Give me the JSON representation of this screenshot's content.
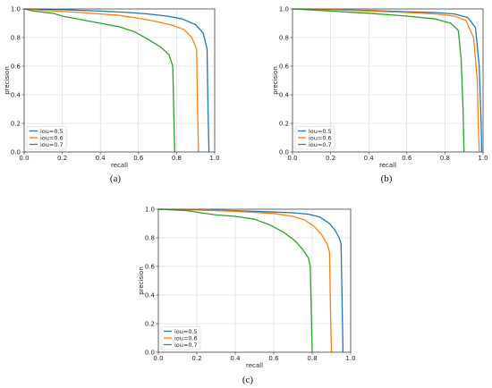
{
  "chart_data": [
    {
      "type": "line",
      "panel": "(a)",
      "xlabel": "recall",
      "ylabel": "precision",
      "xlim": [
        0.0,
        1.0
      ],
      "ylim": [
        0.0,
        1.0
      ],
      "xticks": [
        "0.0",
        "0.2",
        "0.4",
        "0.6",
        "0.8",
        "1.0"
      ],
      "yticks": [
        "0.0",
        "0.2",
        "0.4",
        "0.6",
        "0.8",
        "1.0"
      ],
      "grid": true,
      "legend": "lower-left",
      "series": [
        {
          "name": "iou=0.5",
          "color": "#1f77b4",
          "x": [
            0.0,
            0.2,
            0.4,
            0.55,
            0.65,
            0.75,
            0.83,
            0.9,
            0.94,
            0.96,
            0.965,
            0.97
          ],
          "y": [
            1.0,
            0.995,
            0.985,
            0.975,
            0.965,
            0.95,
            0.93,
            0.89,
            0.83,
            0.72,
            0.3,
            0.0
          ]
        },
        {
          "name": "iou=0.6",
          "color": "#ff7f0e",
          "x": [
            0.0,
            0.1,
            0.3,
            0.5,
            0.6,
            0.7,
            0.78,
            0.84,
            0.88,
            0.905,
            0.91,
            0.915
          ],
          "y": [
            1.0,
            0.99,
            0.975,
            0.955,
            0.935,
            0.91,
            0.885,
            0.855,
            0.8,
            0.72,
            0.3,
            0.0
          ]
        },
        {
          "name": "iou=0.7",
          "color": "#2ca02c",
          "x": [
            0.0,
            0.05,
            0.15,
            0.2,
            0.3,
            0.4,
            0.5,
            0.58,
            0.66,
            0.72,
            0.76,
            0.78,
            0.785,
            0.79
          ],
          "y": [
            1.0,
            0.985,
            0.97,
            0.95,
            0.925,
            0.9,
            0.875,
            0.84,
            0.78,
            0.73,
            0.68,
            0.6,
            0.3,
            0.0
          ]
        }
      ]
    },
    {
      "type": "line",
      "panel": "(b)",
      "xlabel": "recall",
      "ylabel": "precision",
      "xlim": [
        0.0,
        1.0
      ],
      "ylim": [
        0.0,
        1.0
      ],
      "xticks": [
        "0.0",
        "0.2",
        "0.4",
        "0.6",
        "0.8",
        "1.0"
      ],
      "yticks": [
        "0.0",
        "0.2",
        "0.4",
        "0.6",
        "0.8",
        "1.0"
      ],
      "grid": true,
      "legend": "lower-left",
      "series": [
        {
          "name": "iou=0.5",
          "color": "#1f77b4",
          "x": [
            0.0,
            0.2,
            0.4,
            0.6,
            0.75,
            0.85,
            0.92,
            0.96,
            0.98,
            0.99,
            0.993
          ],
          "y": [
            1.0,
            0.995,
            0.99,
            0.98,
            0.975,
            0.965,
            0.94,
            0.87,
            0.6,
            0.2,
            0.0
          ]
        },
        {
          "name": "iou=0.6",
          "color": "#ff7f0e",
          "x": [
            0.0,
            0.2,
            0.4,
            0.6,
            0.75,
            0.85,
            0.91,
            0.95,
            0.97,
            0.975,
            0.98
          ],
          "y": [
            1.0,
            0.995,
            0.985,
            0.975,
            0.965,
            0.95,
            0.92,
            0.8,
            0.5,
            0.2,
            0.0
          ]
        },
        {
          "name": "iou=0.7",
          "color": "#2ca02c",
          "x": [
            0.0,
            0.2,
            0.4,
            0.6,
            0.75,
            0.83,
            0.87,
            0.885,
            0.895,
            0.9
          ],
          "y": [
            1.0,
            0.985,
            0.97,
            0.95,
            0.93,
            0.9,
            0.85,
            0.65,
            0.3,
            0.0
          ]
        }
      ]
    },
    {
      "type": "line",
      "panel": "(c)",
      "xlabel": "recall",
      "ylabel": "precision",
      "xlim": [
        0.0,
        1.0
      ],
      "ylim": [
        0.0,
        1.0
      ],
      "xticks": [
        "0.0",
        "0.2",
        "0.4",
        "0.6",
        "0.8",
        "1.0"
      ],
      "yticks": [
        "0.0",
        "0.2",
        "0.4",
        "0.6",
        "0.8",
        "1.0"
      ],
      "grid": true,
      "legend": "lower-left",
      "series": [
        {
          "name": "iou=0.5",
          "color": "#1f77b4",
          "x": [
            0.0,
            0.2,
            0.4,
            0.6,
            0.7,
            0.78,
            0.84,
            0.89,
            0.92,
            0.94,
            0.95,
            0.955,
            0.96
          ],
          "y": [
            1.0,
            0.995,
            0.99,
            0.98,
            0.975,
            0.965,
            0.945,
            0.9,
            0.85,
            0.8,
            0.76,
            0.4,
            0.0
          ]
        },
        {
          "name": "iou=0.6",
          "color": "#ff7f0e",
          "x": [
            0.0,
            0.2,
            0.4,
            0.6,
            0.7,
            0.76,
            0.81,
            0.85,
            0.88,
            0.89,
            0.895,
            0.9
          ],
          "y": [
            1.0,
            0.995,
            0.985,
            0.97,
            0.95,
            0.925,
            0.88,
            0.82,
            0.75,
            0.7,
            0.3,
            0.0
          ]
        },
        {
          "name": "iou=0.7",
          "color": "#2ca02c",
          "x": [
            0.0,
            0.15,
            0.22,
            0.3,
            0.4,
            0.5,
            0.58,
            0.65,
            0.71,
            0.75,
            0.78,
            0.79,
            0.795,
            0.8
          ],
          "y": [
            1.0,
            0.99,
            0.975,
            0.96,
            0.95,
            0.93,
            0.89,
            0.84,
            0.78,
            0.72,
            0.66,
            0.6,
            0.3,
            0.0
          ]
        }
      ]
    }
  ]
}
